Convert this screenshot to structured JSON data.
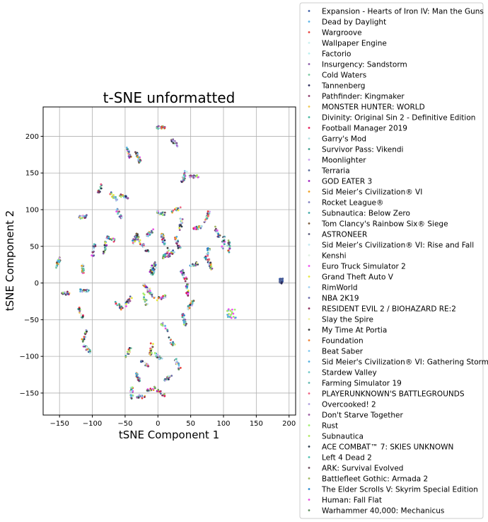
{
  "chart_data": {
    "type": "scatter",
    "title": "t-SNE unformatted",
    "xlabel": "tSNE Component 1",
    "ylabel": "tSNE Component 2",
    "xlim": [
      -175,
      210
    ],
    "ylim": [
      -180,
      240
    ],
    "xticks": [
      -150,
      -100,
      -50,
      0,
      50,
      100,
      150,
      200
    ],
    "yticks": [
      -150,
      -100,
      -50,
      0,
      50,
      100,
      150,
      200
    ],
    "grid": true,
    "legend_position": "outside-right",
    "clusters": [
      [
        -152,
        28
      ],
      [
        -142,
        -14
      ],
      [
        -115,
        20
      ],
      [
        -112,
        -10
      ],
      [
        -118,
        -40
      ],
      [
        -112,
        -72
      ],
      [
        -108,
        -90
      ],
      [
        -115,
        90
      ],
      [
        -98,
        45
      ],
      [
        -88,
        128
      ],
      [
        -80,
        48
      ],
      [
        -72,
        60
      ],
      [
        -68,
        118
      ],
      [
        -60,
        95
      ],
      [
        -52,
        118
      ],
      [
        -60,
        -30
      ],
      [
        -45,
        -25
      ],
      [
        -45,
        178
      ],
      [
        -30,
        172
      ],
      [
        -35,
        60
      ],
      [
        -30,
        60
      ],
      [
        -20,
        48
      ],
      [
        -20,
        -22
      ],
      [
        -12,
        68
      ],
      [
        -18,
        -5
      ],
      [
        -10,
        -15
      ],
      [
        -8,
        22
      ],
      [
        -6,
        18
      ],
      [
        5,
        212
      ],
      [
        5,
        95
      ],
      [
        8,
        60
      ],
      [
        5,
        -20
      ],
      [
        10,
        -60
      ],
      [
        12,
        40
      ],
      [
        20,
        40
      ],
      [
        25,
        192
      ],
      [
        28,
        100
      ],
      [
        30,
        55
      ],
      [
        35,
        80
      ],
      [
        40,
        145
      ],
      [
        40,
        10
      ],
      [
        45,
        -10
      ],
      [
        55,
        145
      ],
      [
        55,
        25
      ],
      [
        60,
        75
      ],
      [
        75,
        90
      ],
      [
        75,
        40
      ],
      [
        80,
        25
      ],
      [
        90,
        70
      ],
      [
        100,
        55
      ],
      [
        108,
        50
      ],
      [
        40,
        -50
      ],
      [
        20,
        -80
      ],
      [
        0,
        -100
      ],
      [
        -20,
        -110
      ],
      [
        -30,
        -130
      ],
      [
        -10,
        -145
      ],
      [
        -40,
        -150
      ],
      [
        15,
        -130
      ],
      [
        -25,
        -155
      ],
      [
        5,
        -150
      ],
      [
        30,
        -110
      ],
      [
        50,
        -30
      ],
      [
        -45,
        -95
      ],
      [
        -10,
        -90
      ]
    ],
    "outlier_cluster": [
      188,
      3
    ],
    "outlier_cluster_2": [
      112,
      -42
    ],
    "series": [
      {
        "name": "Expansion - Hearts of Iron IV: Man the Guns",
        "color": "#3b5ba5"
      },
      {
        "name": "Dead by Daylight",
        "color": "#5ab4e8"
      },
      {
        "name": "Wargroove",
        "color": "#e8413c"
      },
      {
        "name": "Wallpaper Engine",
        "color": "#c8f0f0"
      },
      {
        "name": "Factorio",
        "color": "#b8f0f0"
      },
      {
        "name": "Insurgency: Sandstorm",
        "color": "#8c5aa8"
      },
      {
        "name": "Cold Waters",
        "color": "#7ac8a0"
      },
      {
        "name": "Tannenberg",
        "color": "#2a2a5a"
      },
      {
        "name": "Pathfinder: Kingmaker",
        "color": "#8c3a6a"
      },
      {
        "name": "MONSTER HUNTER: WORLD",
        "color": "#f0c850"
      },
      {
        "name": "Divinity: Original Sin 2 - Definitive Edition",
        "color": "#48b8a0"
      },
      {
        "name": "Football Manager 2019",
        "color": "#e81c5a"
      },
      {
        "name": "Garry's Mod",
        "color": "#b0e0e0"
      },
      {
        "name": "Survivor Pass: Vikendi",
        "color": "#3a9a8a"
      },
      {
        "name": "Moonlighter",
        "color": "#c8a0f0"
      },
      {
        "name": "Terraria",
        "color": "#5a6a9a"
      },
      {
        "name": "GOD EATER 3",
        "color": "#a020c0"
      },
      {
        "name": "Sid Meier’s Civilization® VI",
        "color": "#f0a020"
      },
      {
        "name": "Rocket League®",
        "color": "#8080c0"
      },
      {
        "name": "Subnautica: Below Zero",
        "color": "#40a8a8"
      },
      {
        "name": "Tom Clancy's Rainbow Six® Siege",
        "color": "#7a5a3a"
      },
      {
        "name": "ASTRONEER",
        "color": "#5a5a7a"
      },
      {
        "name": "Sid Meier’s Civilization® VI: Rise and Fall",
        "color": "#c0e8f0"
      },
      {
        "name": "Kenshi",
        "color": "#e0f0e0"
      },
      {
        "name": "Euro Truck Simulator 2",
        "color": "#f050f0"
      },
      {
        "name": "Grand Theft Auto V",
        "color": "#e8e840"
      },
      {
        "name": "RimWorld",
        "color": "#a0d0f0"
      },
      {
        "name": "NBA 2K19",
        "color": "#6a6aaa"
      },
      {
        "name": "RESIDENT EVIL 2 / BIOHAZARD RE:2",
        "color": "#8a2a5a"
      },
      {
        "name": "Slay the Spire",
        "color": "#f0f0a0"
      },
      {
        "name": "My Time At Portia",
        "color": "#3a3a3a"
      },
      {
        "name": "Foundation",
        "color": "#f08030"
      },
      {
        "name": "Beat Saber",
        "color": "#80c8f0"
      },
      {
        "name": "Sid Meier's Civilization® VI: Gathering Storm",
        "color": "#50b0e0"
      },
      {
        "name": "Stardew Valley",
        "color": "#70c8c8"
      },
      {
        "name": "Farming Simulator 19",
        "color": "#60b8b0"
      },
      {
        "name": "PLAYERUNKNOWN'S BATTLEGROUNDS",
        "color": "#f06080"
      },
      {
        "name": "Overcooked! 2",
        "color": "#b0a0e0"
      },
      {
        "name": "Don't Starve Together",
        "color": "#9a5aa0"
      },
      {
        "name": "Rust",
        "color": "#a0f070"
      },
      {
        "name": "Subnautica",
        "color": "#b0e860"
      },
      {
        "name": "ACE COMBAT™ 7: SKIES UNKNOWN",
        "color": "#2a3a4a"
      },
      {
        "name": "Left 4 Dead 2",
        "color": "#50c0b0"
      },
      {
        "name": "ARK: Survival Evolved",
        "color": "#6a4a5a"
      },
      {
        "name": "Battlefleet Gothic: Armada 2",
        "color": "#a0b860"
      },
      {
        "name": "The Elder Scrolls V: Skyrim Special Edition",
        "color": "#2a8ad0"
      },
      {
        "name": "Human: Fall Flat",
        "color": "#e850e0"
      },
      {
        "name": "Warhammer 40,000: Mechanicus",
        "color": "#5a8a5a"
      }
    ]
  }
}
